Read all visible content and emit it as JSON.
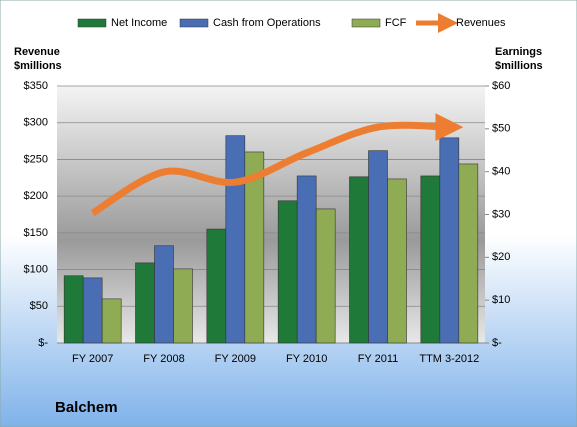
{
  "chart_data": {
    "type": "bar-line",
    "title": "Balchem",
    "y_label": [
      "Revenue",
      "$millions"
    ],
    "y2_label": [
      "Earnings",
      "$millions"
    ],
    "categories": [
      "FY 2007",
      "FY 2008",
      "FY 2009",
      "FY 2010",
      "FY 2011",
      "TTM 3-2012"
    ],
    "series": [
      {
        "name": "Net Income",
        "color": "#1f7a3a",
        "axis": "y2",
        "kind": "bar",
        "values": [
          15.7,
          18.7,
          26.6,
          33.2,
          38.8,
          39.0
        ]
      },
      {
        "name": "Cash from Operations",
        "color": "#4a6eb3",
        "axis": "y2",
        "kind": "bar",
        "values": [
          15.2,
          22.7,
          48.4,
          39.0,
          44.9,
          47.9
        ]
      },
      {
        "name": "FCF",
        "color": "#8fac55",
        "axis": "y2",
        "kind": "bar",
        "values": [
          10.3,
          17.3,
          44.6,
          31.3,
          38.3,
          41.8
        ]
      },
      {
        "name": "Revenues",
        "color": "#ed7d31",
        "axis": "y",
        "kind": "line",
        "values": [
          177,
          233,
          219,
          259,
          294,
          294
        ]
      }
    ],
    "ylim": [
      0,
      350
    ],
    "yticks": [
      {
        "value": 0,
        "label": "$-"
      },
      {
        "value": 50,
        "label": "$50"
      },
      {
        "value": 100,
        "label": "$100"
      },
      {
        "value": 150,
        "label": "$150"
      },
      {
        "value": 200,
        "label": "$200"
      },
      {
        "value": 250,
        "label": "$250"
      },
      {
        "value": 300,
        "label": "$300"
      },
      {
        "value": 350,
        "label": "$350"
      }
    ],
    "y2lim": [
      0,
      60
    ],
    "y2ticks": [
      {
        "value": 0,
        "label": "$-"
      },
      {
        "value": 10,
        "label": "$10"
      },
      {
        "value": 20,
        "label": "$20"
      },
      {
        "value": 30,
        "label": "$30"
      },
      {
        "value": 40,
        "label": "$40"
      },
      {
        "value": 50,
        "label": "$50"
      },
      {
        "value": 60,
        "label": "$60"
      }
    ],
    "grid": true
  }
}
